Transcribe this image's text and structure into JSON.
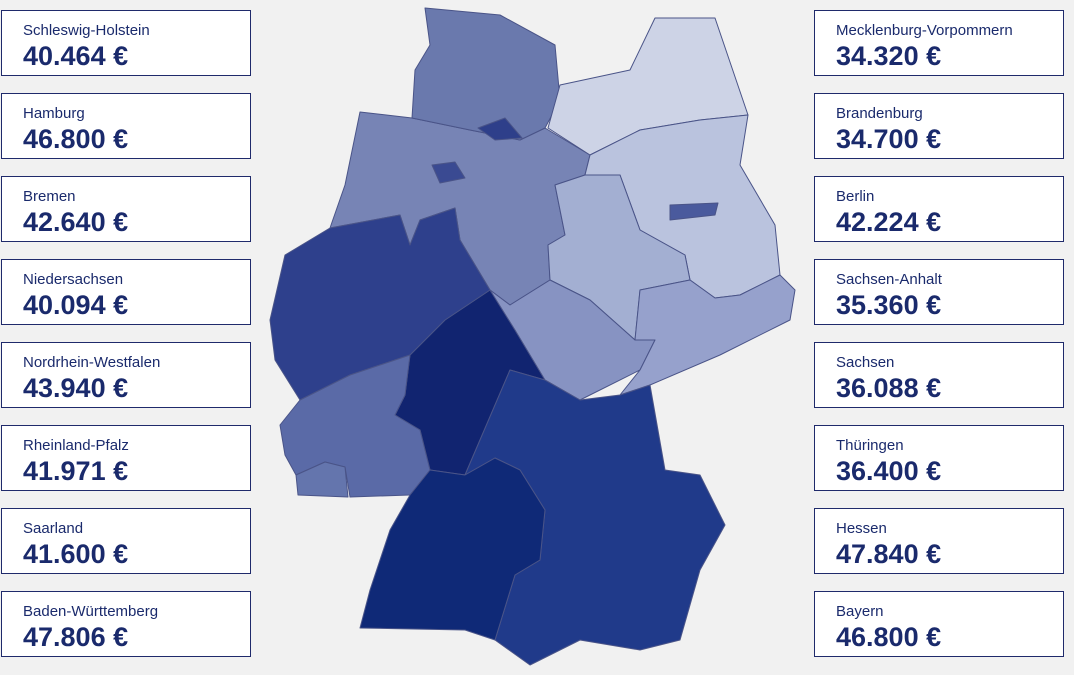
{
  "left": [
    {
      "name": "Schleswig-Holstein",
      "value": "40.464 €",
      "color": "#6a79ad"
    },
    {
      "name": "Hamburg",
      "value": "46.800 €",
      "color": "#2e3f8a"
    },
    {
      "name": "Bremen",
      "value": "42.640 €",
      "color": "#3a4a92"
    },
    {
      "name": "Niedersachsen",
      "value": "40.094 €",
      "color": "#7784b5"
    },
    {
      "name": "Nordrhein-Westfalen",
      "value": "43.940 €",
      "color": "#2e408c"
    },
    {
      "name": "Rheinland-Pfalz",
      "value": "41.971 €",
      "color": "#5a6aa7"
    },
    {
      "name": "Saarland",
      "value": "41.600 €",
      "color": "#6475ad"
    },
    {
      "name": "Baden-Württemberg",
      "value": "47.806 €",
      "color": "#0f2977"
    }
  ],
  "right": [
    {
      "name": "Mecklenburg-Vorpommern",
      "value": "34.320 €",
      "color": "#cdd3e6"
    },
    {
      "name": "Brandenburg",
      "value": "34.700 €",
      "color": "#bac3de"
    },
    {
      "name": "Berlin",
      "value": "42.224 €",
      "color": "#4a5a9d"
    },
    {
      "name": "Sachsen-Anhalt",
      "value": "35.360 €",
      "color": "#a3afd2"
    },
    {
      "name": "Sachsen",
      "value": "36.088 €",
      "color": "#96a1cc"
    },
    {
      "name": "Thüringen",
      "value": "36.400 €",
      "color": "#8793c2"
    },
    {
      "name": "Hessen",
      "value": "47.840 €",
      "color": "#112470"
    },
    {
      "name": "Bayern",
      "value": "46.800 €",
      "color": "#203a8a"
    }
  ]
}
